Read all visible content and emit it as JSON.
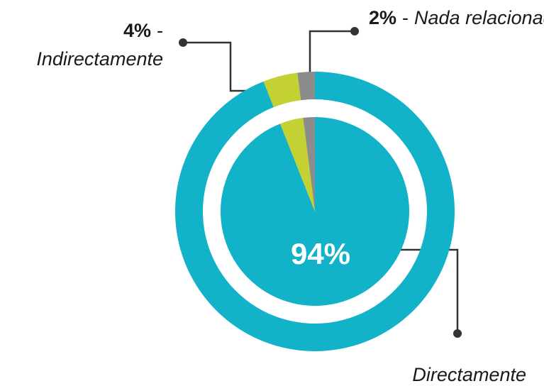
{
  "chart_data": {
    "type": "pie",
    "categories": [
      "Directamente",
      "Indirectamente",
      "Nada relacionado"
    ],
    "values": [
      94,
      4,
      2
    ],
    "value_labels": [
      "94%",
      "4%",
      "2%"
    ],
    "colors": [
      "#12b2c9",
      "#c3d132",
      "#8c8c8c"
    ],
    "separator": "-"
  }
}
